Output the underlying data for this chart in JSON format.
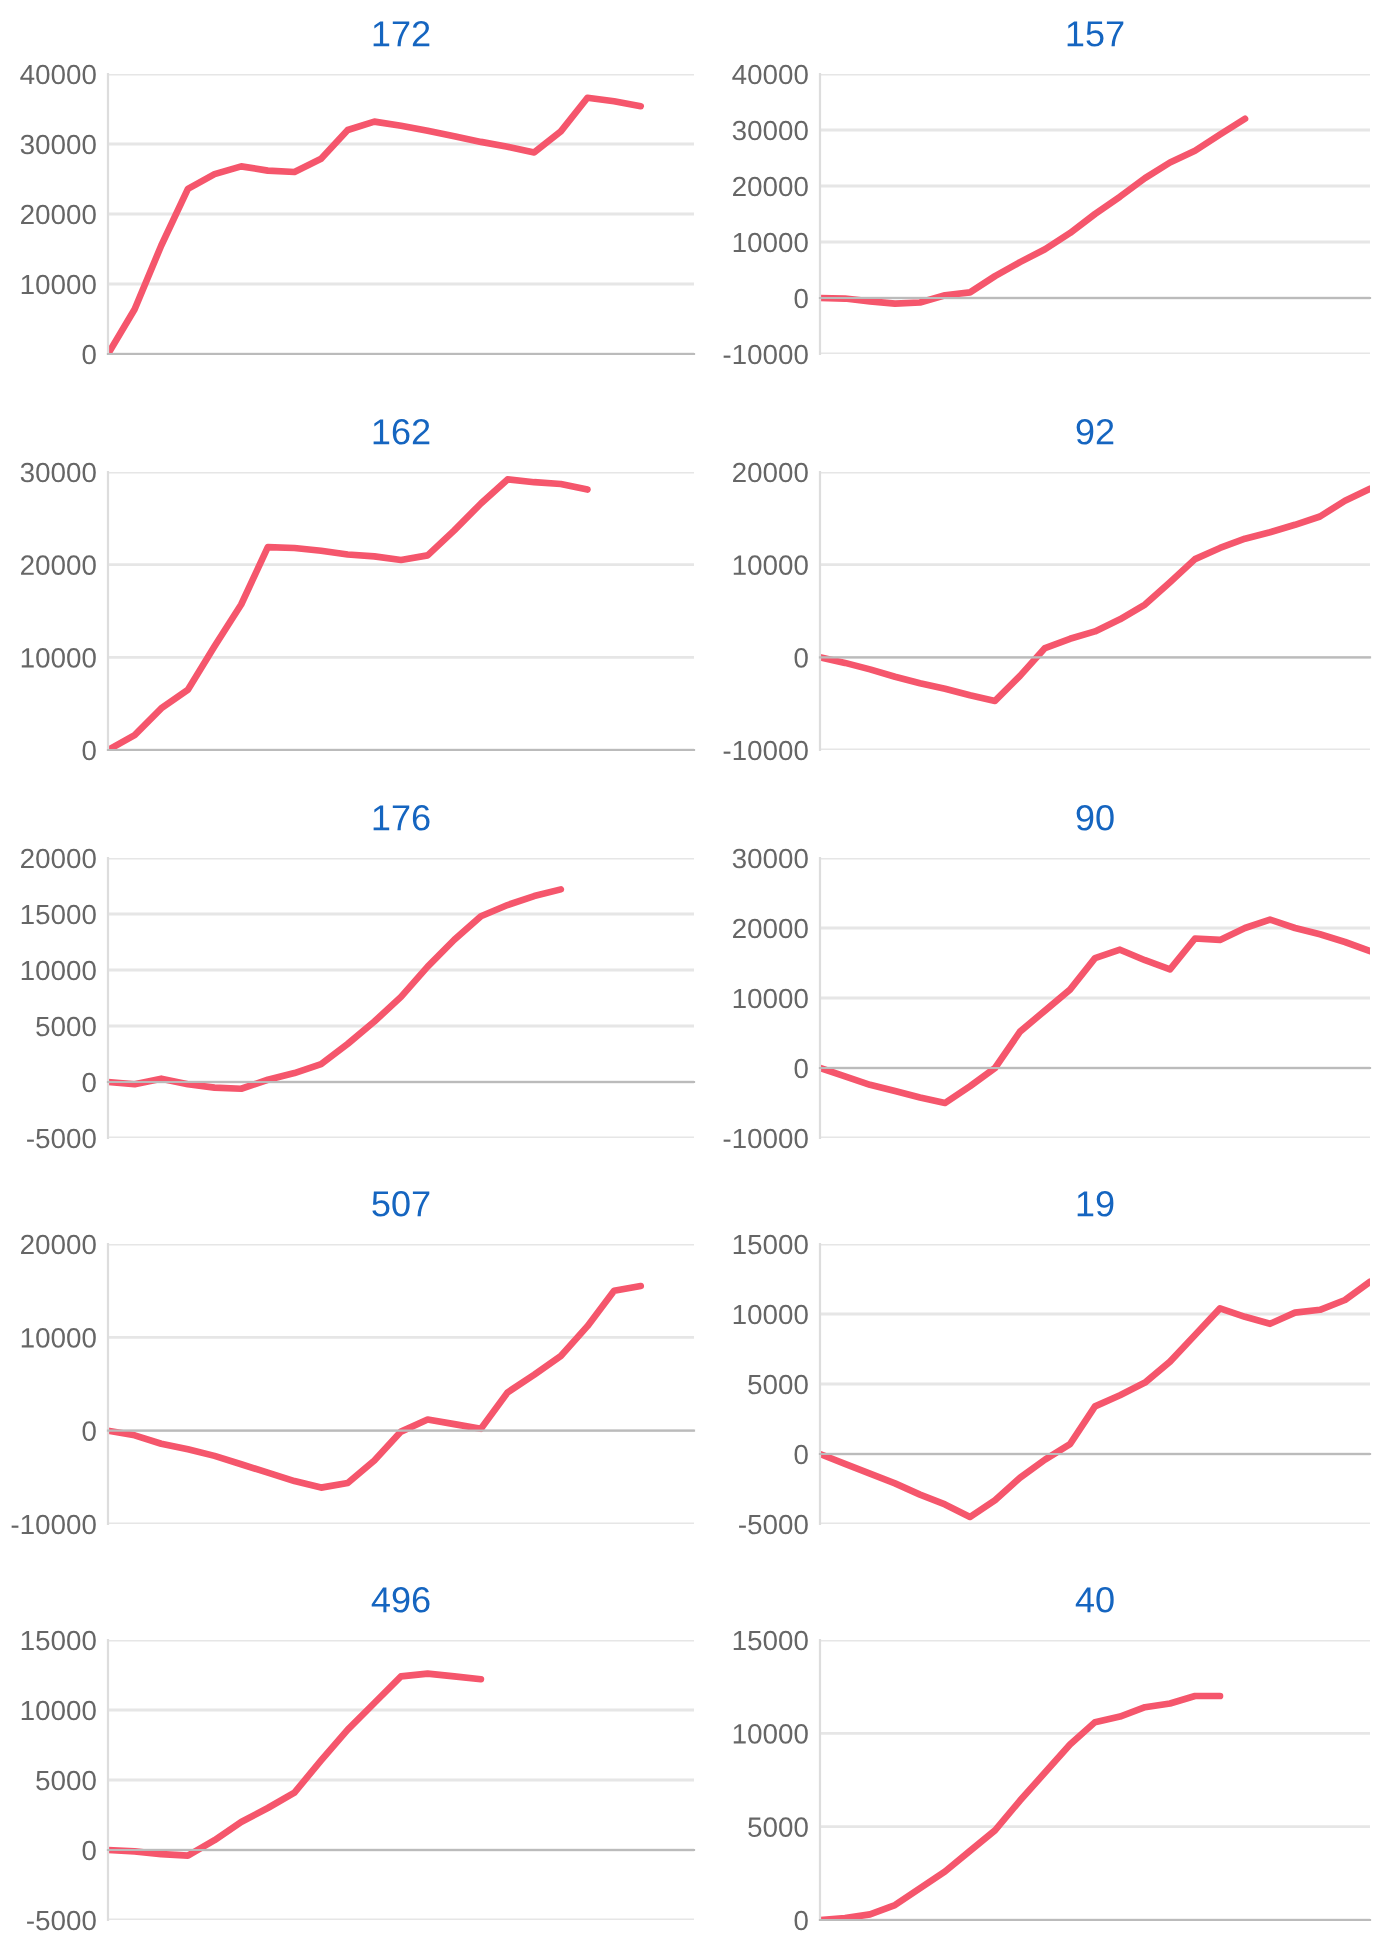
{
  "chart_data": [
    {
      "type": "line",
      "title": "172",
      "categories": [
        null,
        null,
        null,
        null,
        null,
        null,
        null,
        null,
        null,
        null,
        null,
        null,
        null,
        null,
        null,
        null,
        null,
        null,
        null,
        null,
        null,
        null,
        null
      ],
      "series": [
        {
          "color": "#f5566c",
          "values": [
            0,
            6400,
            15500,
            23600,
            25700,
            26800,
            26200,
            26000,
            27900,
            32000,
            33200,
            32600,
            31900,
            31100,
            30300,
            29600,
            28800,
            31800,
            36600,
            36100,
            35400,
            null,
            null
          ]
        }
      ],
      "ylim": [
        0,
        40000
      ],
      "yticks": [
        0,
        10000,
        20000,
        30000,
        40000
      ],
      "grid": "y",
      "marker": "none",
      "line_style": "solid"
    },
    {
      "type": "line",
      "title": "157",
      "categories": [
        null,
        null,
        null,
        null,
        null,
        null,
        null,
        null,
        null,
        null,
        null,
        null,
        null,
        null,
        null,
        null,
        null,
        null,
        null,
        null,
        null,
        null,
        null
      ],
      "series": [
        {
          "color": "#f5566c",
          "values": [
            0,
            -100,
            -600,
            -1000,
            -800,
            500,
            1000,
            3900,
            6400,
            8700,
            11600,
            15000,
            18100,
            21400,
            24200,
            26300,
            29200,
            32000,
            null,
            null,
            null,
            null,
            null
          ]
        }
      ],
      "ylim": [
        -10000,
        40000
      ],
      "yticks": [
        -10000,
        0,
        10000,
        20000,
        30000,
        40000
      ],
      "grid": "y",
      "marker": "none",
      "line_style": "solid"
    },
    {
      "type": "line",
      "title": "162",
      "categories": [
        null,
        null,
        null,
        null,
        null,
        null,
        null,
        null,
        null,
        null,
        null,
        null,
        null,
        null,
        null,
        null,
        null,
        null,
        null,
        null,
        null,
        null,
        null
      ],
      "series": [
        {
          "color": "#f5566c",
          "values": [
            0,
            1600,
            4500,
            6500,
            11200,
            15700,
            21900,
            21800,
            21500,
            21100,
            20900,
            20500,
            21000,
            23700,
            26600,
            29200,
            28900,
            28700,
            28100,
            null,
            null,
            null,
            null
          ]
        }
      ],
      "ylim": [
        0,
        30000
      ],
      "yticks": [
        0,
        10000,
        20000,
        30000
      ],
      "grid": "y",
      "marker": "none",
      "line_style": "solid"
    },
    {
      "type": "line",
      "title": "92",
      "categories": [
        null,
        null,
        null,
        null,
        null,
        null,
        null,
        null,
        null,
        null,
        null,
        null,
        null,
        null,
        null,
        null,
        null,
        null,
        null,
        null,
        null,
        null,
        null
      ],
      "series": [
        {
          "color": "#f5566c",
          "values": [
            0,
            -600,
            -1300,
            -2100,
            -2800,
            -3400,
            -4100,
            -4700,
            -2000,
            1000,
            2000,
            2800,
            4100,
            5700,
            8100,
            10600,
            11800,
            12800,
            13500,
            14300,
            15200,
            16900,
            18200
          ]
        }
      ],
      "ylim": [
        -10000,
        20000
      ],
      "yticks": [
        -10000,
        0,
        10000,
        20000
      ],
      "grid": "y",
      "marker": "none",
      "line_style": "solid"
    },
    {
      "type": "line",
      "title": "176",
      "categories": [
        null,
        null,
        null,
        null,
        null,
        null,
        null,
        null,
        null,
        null,
        null,
        null,
        null,
        null,
        null,
        null,
        null,
        null,
        null,
        null,
        null,
        null,
        null
      ],
      "series": [
        {
          "color": "#f5566c",
          "values": [
            0,
            -200,
            300,
            -200,
            -500,
            -600,
            200,
            800,
            1600,
            3400,
            5400,
            7600,
            10300,
            12700,
            14800,
            15800,
            16600,
            17200,
            null,
            null,
            null,
            null,
            null
          ]
        }
      ],
      "ylim": [
        -5000,
        20000
      ],
      "yticks": [
        -5000,
        0,
        5000,
        10000,
        15000,
        20000
      ],
      "grid": "y",
      "marker": "none",
      "line_style": "solid"
    },
    {
      "type": "line",
      "title": "90",
      "categories": [
        null,
        null,
        null,
        null,
        null,
        null,
        null,
        null,
        null,
        null,
        null,
        null,
        null,
        null,
        null,
        null,
        null,
        null,
        null,
        null,
        null,
        null,
        null
      ],
      "series": [
        {
          "color": "#f5566c",
          "values": [
            0,
            -1200,
            -2400,
            -3300,
            -4200,
            -5000,
            -2600,
            0,
            5200,
            8200,
            11200,
            15700,
            16900,
            15400,
            14100,
            18500,
            18300,
            20000,
            21200,
            20000,
            19100,
            18000,
            16700
          ]
        }
      ],
      "ylim": [
        -10000,
        30000
      ],
      "yticks": [
        -10000,
        0,
        10000,
        20000,
        30000
      ],
      "grid": "y",
      "marker": "none",
      "line_style": "solid"
    },
    {
      "type": "line",
      "title": "507",
      "categories": [
        null,
        null,
        null,
        null,
        null,
        null,
        null,
        null,
        null,
        null,
        null,
        null,
        null,
        null,
        null,
        null,
        null,
        null,
        null,
        null,
        null,
        null,
        null
      ],
      "series": [
        {
          "color": "#f5566c",
          "values": [
            0,
            -500,
            -1400,
            -2000,
            -2700,
            -3600,
            -4500,
            -5400,
            -6100,
            -5600,
            -3200,
            -100,
            1200,
            700,
            200,
            4100,
            6000,
            8000,
            11200,
            15000,
            15500,
            null,
            null
          ]
        }
      ],
      "ylim": [
        -10000,
        20000
      ],
      "yticks": [
        -10000,
        0,
        10000,
        20000
      ],
      "grid": "y",
      "marker": "none",
      "line_style": "solid"
    },
    {
      "type": "line",
      "title": "19",
      "categories": [
        null,
        null,
        null,
        null,
        null,
        null,
        null,
        null,
        null,
        null,
        null,
        null,
        null,
        null,
        null,
        null,
        null,
        null,
        null,
        null,
        null,
        null,
        null
      ],
      "series": [
        {
          "color": "#f5566c",
          "values": [
            0,
            -700,
            -1400,
            -2100,
            -2900,
            -3600,
            -4500,
            -3300,
            -1700,
            -400,
            700,
            3400,
            4200,
            5100,
            6600,
            8500,
            10400,
            9800,
            9300,
            10100,
            10300,
            11000,
            12300
          ]
        }
      ],
      "ylim": [
        -5000,
        15000
      ],
      "yticks": [
        -5000,
        0,
        5000,
        10000,
        15000
      ],
      "grid": "y",
      "marker": "none",
      "line_style": "solid"
    },
    {
      "type": "line",
      "title": "496",
      "categories": [
        null,
        null,
        null,
        null,
        null,
        null,
        null,
        null,
        null,
        null,
        null,
        null,
        null,
        null,
        null,
        null,
        null,
        null,
        null,
        null,
        null,
        null,
        null
      ],
      "series": [
        {
          "color": "#f5566c",
          "values": [
            0,
            -100,
            -300,
            -400,
            700,
            2000,
            3000,
            4100,
            6400,
            8600,
            10500,
            12400,
            12600,
            12400,
            12200,
            null,
            null,
            null,
            null,
            null,
            null,
            null,
            null
          ]
        }
      ],
      "ylim": [
        -5000,
        15000
      ],
      "yticks": [
        -5000,
        0,
        5000,
        10000,
        15000
      ],
      "grid": "y",
      "marker": "none",
      "line_style": "solid"
    },
    {
      "type": "line",
      "title": "40",
      "categories": [
        null,
        null,
        null,
        null,
        null,
        null,
        null,
        null,
        null,
        null,
        null,
        null,
        null,
        null,
        null,
        null,
        null,
        null,
        null,
        null,
        null,
        null,
        null
      ],
      "series": [
        {
          "color": "#f5566c",
          "values": [
            0,
            100,
            300,
            800,
            1700,
            2600,
            3700,
            4800,
            6400,
            7900,
            9400,
            10600,
            10900,
            11400,
            11600,
            12000,
            12000,
            null,
            null,
            null,
            null,
            null,
            null
          ]
        }
      ],
      "ylim": [
        0,
        15000
      ],
      "yticks": [
        0,
        5000,
        10000,
        15000
      ],
      "grid": "y",
      "marker": "none",
      "line_style": "solid"
    }
  ]
}
